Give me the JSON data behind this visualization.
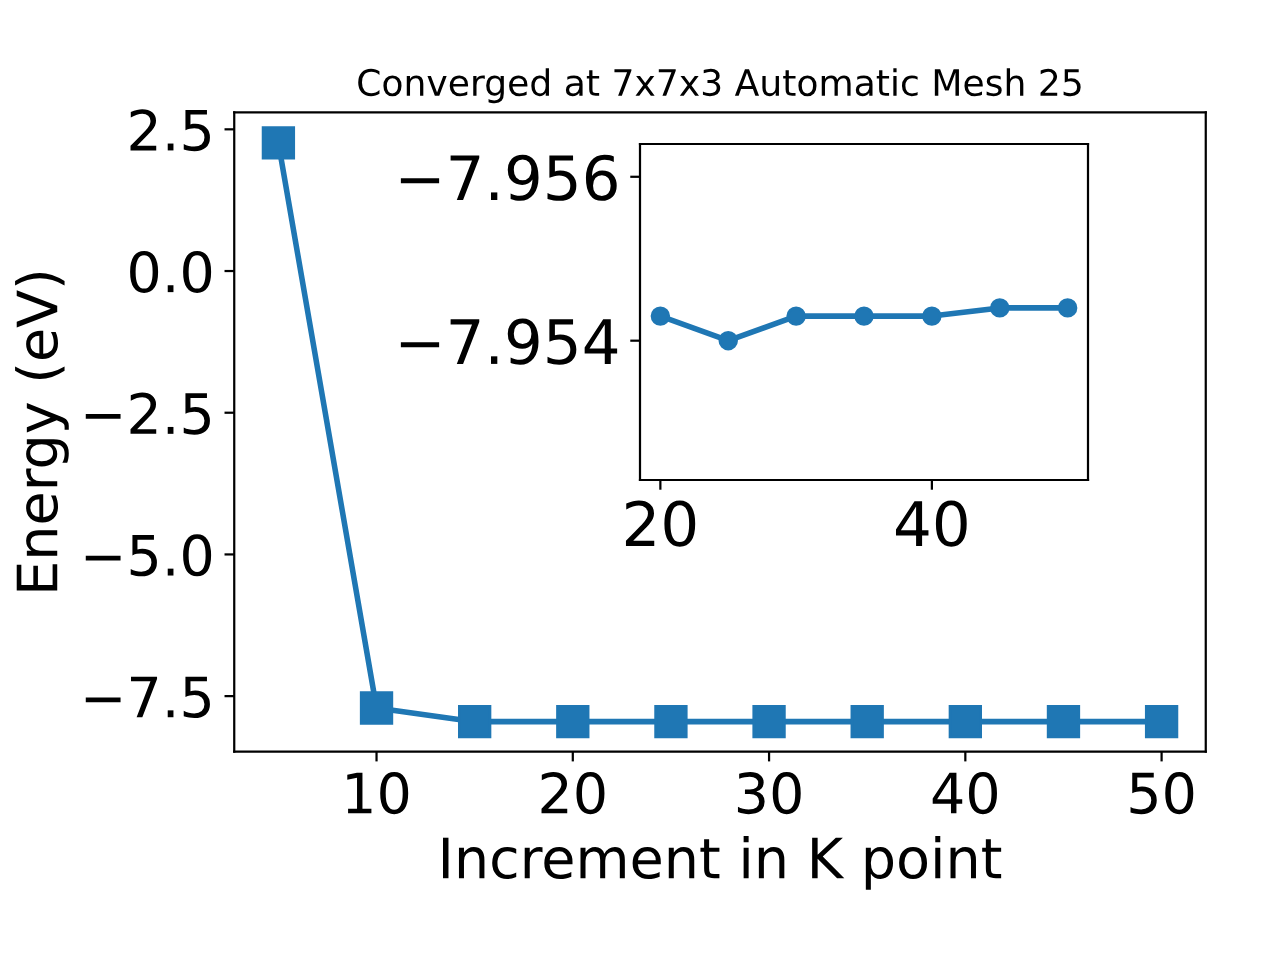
{
  "chart_data": [
    {
      "type": "line",
      "title": "Converged at 7x7x3 Automatic Mesh 25",
      "xlabel": "Increment in K point",
      "ylabel": "Energy (eV)",
      "x": [
        5,
        10,
        15,
        20,
        25,
        30,
        35,
        40,
        45,
        50
      ],
      "series": [
        {
          "color": "#1f77b4",
          "values": [
            2.26,
            -7.71,
            -7.95,
            -7.95,
            -7.95,
            -7.95,
            -7.95,
            -7.95,
            -7.95,
            -7.95
          ]
        }
      ],
      "xlim": [
        2.75,
        52.25
      ],
      "xticks": [
        10,
        20,
        30,
        40,
        50
      ],
      "ylim": [
        -8.48,
        2.8
      ],
      "yticks": [
        2.5,
        {
          "value": 0,
          "label": "0.0"
        },
        -2.5,
        {
          "value": -5,
          "label": "−5.0"
        },
        -7.5
      ],
      "marker": "square",
      "line_style": "solid",
      "grid": false,
      "legend": false
    },
    {
      "type": "line",
      "x": [
        20,
        25,
        30,
        35,
        40,
        45,
        50
      ],
      "series": [
        {
          "color": "#1f77b4",
          "values": [
            -7.9543,
            -7.954,
            -7.9543,
            -7.9543,
            -7.9543,
            -7.9544,
            -7.9544
          ]
        }
      ],
      "xlim": [
        18.5,
        51.5
      ],
      "xticks": [
        20,
        40
      ],
      "ylim": [
        -7.9523,
        -7.9564
      ],
      "yticks": [
        -7.956,
        -7.954
      ],
      "marker": "circle",
      "line_style": "solid",
      "grid": false,
      "legend": false
    }
  ]
}
